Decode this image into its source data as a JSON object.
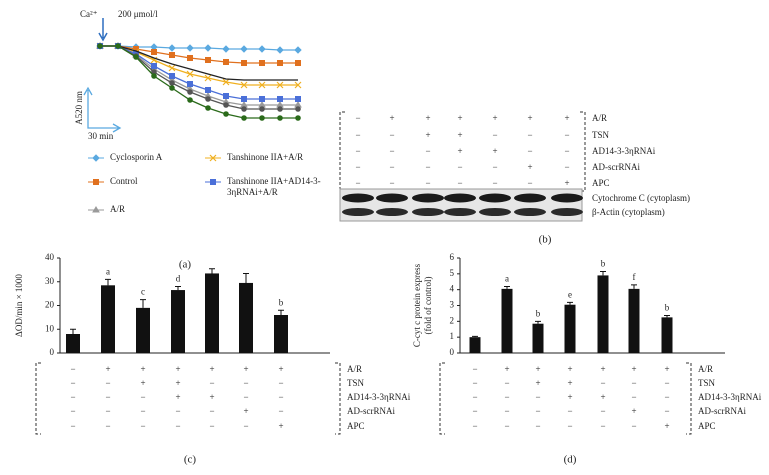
{
  "chart_data": [
    {
      "type": "line",
      "panel_label": "(a)",
      "annotations": {
        "stimulus": "Ca²⁺",
        "dose": "200 μmol/l",
        "y_scale": "A520 nm",
        "x_scale": "30 min"
      },
      "categories": [
        null,
        null,
        null,
        null,
        null,
        null,
        null,
        null,
        null,
        null,
        null,
        null
      ],
      "series": [
        {
          "name": "Cyclosporin A",
          "color": "#5aa9e0",
          "marker": "diamond",
          "values": [
            0,
            0,
            -0.1,
            -0.1,
            -0.2,
            -0.2,
            -0.2,
            -0.3,
            -0.3,
            -0.3,
            -0.4,
            -0.4
          ]
        },
        {
          "name": "Control",
          "color": "#e0701e",
          "marker": "square",
          "values": [
            0,
            0,
            -0.3,
            -0.6,
            -0.9,
            -1.2,
            -1.4,
            -1.6,
            -1.7,
            -1.7,
            -1.7,
            -1.7
          ]
        },
        {
          "name": "A/R",
          "color": "#9a9a9a",
          "marker": "triangle",
          "values": [
            0,
            0,
            -0.9,
            -2.3,
            -3.4,
            -4.3,
            -5.0,
            -5.6,
            -5.9,
            -5.9,
            -5.9,
            -5.9
          ]
        },
        {
          "name": "Tanshinone IIA+A/R",
          "color": "#f0b020",
          "marker": "x",
          "values": [
            0,
            0,
            -0.6,
            -1.4,
            -2.2,
            -2.8,
            -3.2,
            -3.6,
            -3.9,
            -3.9,
            -3.9,
            -3.9
          ]
        },
        {
          "name": "Tanshinone IIA+AD14-3-3ηRNAi+A/R",
          "color": "#4a6fd8",
          "marker": "star",
          "values": [
            0,
            0,
            -0.8,
            -2.0,
            -3.0,
            -3.8,
            -4.4,
            -5.0,
            -5.3,
            -5.3,
            -5.3,
            -5.3
          ]
        },
        {
          "color": "#222222",
          "marker": "none",
          "values": [
            0,
            0,
            -0.5,
            -1.2,
            -1.8,
            -2.3,
            -2.8,
            -3.3,
            -3.4,
            -3.4,
            -3.4,
            -3.4
          ]
        },
        {
          "color": "#555555",
          "marker": "circle",
          "values": [
            0,
            0,
            -1.0,
            -2.6,
            -3.7,
            -4.6,
            -5.3,
            -5.9,
            -6.3,
            -6.3,
            -6.3,
            -6.3
          ]
        },
        {
          "color": "#2a6a1a",
          "marker": "circle",
          "values": [
            0,
            0,
            -1.1,
            -3.0,
            -4.2,
            -5.4,
            -6.2,
            -6.8,
            -7.2,
            -7.2,
            -7.2,
            -7.2
          ]
        }
      ]
    },
    {
      "type": "bar",
      "panel_label": "(c)",
      "ylabel": [
        "ΔOD/min × 1000"
      ],
      "color": "#111111",
      "values": [
        8,
        28.5,
        19,
        26.5,
        33.5,
        29.5,
        16
      ],
      "errors": [
        2,
        2.5,
        3.5,
        1.5,
        2,
        4,
        2
      ],
      "letters": [
        null,
        "a",
        "c",
        "d",
        null,
        null,
        "b"
      ],
      "ylim": [
        0,
        40
      ],
      "yticks": [
        0,
        10,
        20,
        30,
        40
      ],
      "conditions": [
        {
          "label": "A/R",
          "signs": [
            "−",
            "+",
            "+",
            "+",
            "+",
            "+",
            "+"
          ]
        },
        {
          "label": "TSN",
          "signs": [
            "−",
            "−",
            "+",
            "+",
            "−",
            "−",
            "−"
          ]
        },
        {
          "label": "AD14-3-3ηRNAi",
          "signs": [
            "−",
            "−",
            "−",
            "+",
            "+",
            "−",
            "−"
          ]
        },
        {
          "label": "AD-scrRNAi",
          "signs": [
            "−",
            "−",
            "−",
            "−",
            "−",
            "+",
            "−"
          ]
        },
        {
          "label": "APC",
          "signs": [
            "−",
            "−",
            "−",
            "−",
            "−",
            "−",
            "+"
          ]
        }
      ]
    },
    {
      "type": "bar",
      "panel_label": "(d)",
      "ylabel": [
        "C-cyt c protein express",
        "(fold of control)"
      ],
      "color": "#111111",
      "values": [
        1,
        4.05,
        1.85,
        3.05,
        4.9,
        4.05,
        2.25
      ],
      "errors": [
        0.05,
        0.15,
        0.15,
        0.15,
        0.25,
        0.25,
        0.12
      ],
      "letters": [
        null,
        "a",
        "b",
        "e",
        "b",
        "f",
        "b"
      ],
      "ylim": [
        0,
        6
      ],
      "yticks": [
        0,
        1,
        2,
        3,
        4,
        5,
        6
      ],
      "conditions": [
        {
          "label": "A/R",
          "signs": [
            "−",
            "+",
            "+",
            "+",
            "+",
            "+",
            "+"
          ]
        },
        {
          "label": "TSN",
          "signs": [
            "−",
            "−",
            "+",
            "+",
            "−",
            "−",
            "−"
          ]
        },
        {
          "label": "AD14-3-3ηRNAi",
          "signs": [
            "−",
            "−",
            "−",
            "+",
            "+",
            "−",
            "−"
          ]
        },
        {
          "label": "AD-scrRNAi",
          "signs": [
            "−",
            "−",
            "−",
            "−",
            "−",
            "+",
            "−"
          ]
        },
        {
          "label": "APC",
          "signs": [
            "−",
            "−",
            "−",
            "−",
            "−",
            "−",
            "+"
          ]
        }
      ]
    }
  ],
  "blot": {
    "panel_label": "(b)",
    "conditions": [
      {
        "label": "A/R",
        "signs": [
          "−",
          "+",
          "+",
          "+",
          "+",
          "+",
          "+"
        ]
      },
      {
        "label": "TSN",
        "signs": [
          "−",
          "−",
          "+",
          "+",
          "−",
          "−",
          "−"
        ]
      },
      {
        "label": "AD14-3-3ηRNAi",
        "signs": [
          "−",
          "−",
          "−",
          "+",
          "+",
          "−",
          "−"
        ]
      },
      {
        "label": "AD-scrRNAi",
        "signs": [
          "−",
          "−",
          "−",
          "−",
          "−",
          "+",
          "−"
        ]
      },
      {
        "label": "APC",
        "signs": [
          "−",
          "−",
          "−",
          "−",
          "−",
          "−",
          "+"
        ]
      }
    ],
    "bands": [
      "Cytochrome C (cytoplasm)",
      "β-Actin (cytoplasm)"
    ]
  }
}
